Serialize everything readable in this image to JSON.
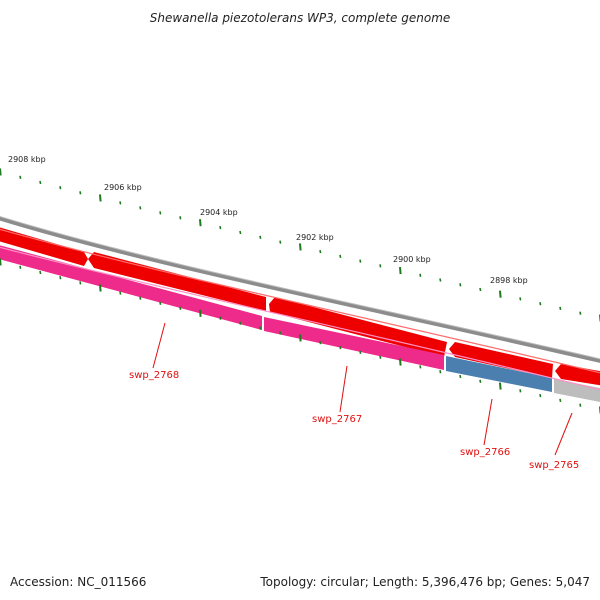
{
  "title": "Shewanella piezotolerans WP3, complete genome",
  "footer": {
    "accession_label": "Accession: NC_011566",
    "topology_label": "Topology: circular; Length: 5,396,476 bp; Genes: 5,047"
  },
  "kbp_ticks": [
    "2908 kbp",
    "2906 kbp",
    "2904 kbp",
    "2902 kbp",
    "2900 kbp",
    "2898 kbp"
  ],
  "genes": [
    {
      "id": "swp_2768",
      "color": "#ee2a8a"
    },
    {
      "id": "swp_2767",
      "color": "#ee2a8a"
    },
    {
      "id": "swp_2766",
      "color": "#4a7fb0"
    },
    {
      "id": "swp_2765",
      "color": "#bdbdbd"
    }
  ],
  "colors": {
    "forward_strand": "#ee0000",
    "backbone": "#8c8c8c",
    "tick": "#1f7a1f",
    "label": "#e01010"
  }
}
